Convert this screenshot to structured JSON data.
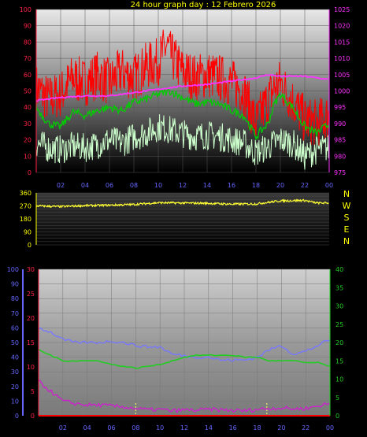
{
  "title": "24 hour graph day : 12 Febrero 2026",
  "colors": {
    "wind_gust": "#ff0000",
    "wind_speed": "#00cc00",
    "wind_speed_low": "#ccffcc",
    "pressure": "#ff33ff",
    "direction": "#ffff33",
    "left_axis_a": "#6666ff",
    "left_axis_b": "#ff2244",
    "right_axis_c": "#22cc22",
    "tick_yellow": "#ffff00",
    "tick_magenta": "#ff33ff"
  },
  "chart_data": [
    {
      "type": "line",
      "name": "wind-pressure",
      "x_tick_labels": [
        "02",
        "04",
        "06",
        "08",
        "10",
        "12",
        "14",
        "16",
        "18",
        "20",
        "22",
        "00"
      ],
      "y_left_ticks": [
        "0",
        "10",
        "20",
        "30",
        "40",
        "50",
        "60",
        "70",
        "80",
        "90",
        "100"
      ],
      "y_left_range": [
        0,
        100
      ],
      "y_right_ticks": [
        "975",
        "980",
        "985",
        "990",
        "995",
        "1000",
        "1005",
        "1010",
        "1015",
        "1020",
        "1025"
      ],
      "y_right_range": [
        975,
        1025
      ],
      "x_range_hours": [
        0,
        24
      ],
      "series": [
        {
          "key": "gust",
          "axis": "left",
          "x": [
            0,
            1,
            2,
            3,
            4,
            5,
            6,
            7,
            8,
            9,
            10,
            10.7,
            11,
            12,
            13,
            14,
            15,
            16,
            17,
            18,
            19,
            19.5,
            20,
            21,
            22,
            23,
            24
          ],
          "values": [
            52,
            45,
            48,
            58,
            55,
            60,
            55,
            62,
            58,
            65,
            68,
            78,
            72,
            62,
            58,
            60,
            58,
            55,
            50,
            30,
            45,
            52,
            55,
            44,
            32,
            30,
            35
          ]
        },
        {
          "key": "speed",
          "axis": "left",
          "x": [
            0,
            1,
            2,
            3,
            4,
            5,
            6,
            7,
            8,
            9,
            10,
            11,
            12,
            13,
            14,
            15,
            16,
            17,
            18,
            19,
            19.5,
            20,
            21,
            22,
            23,
            24
          ],
          "values": [
            40,
            30,
            28,
            37,
            35,
            38,
            40,
            38,
            43,
            45,
            48,
            50,
            46,
            42,
            43,
            42,
            38,
            35,
            22,
            30,
            42,
            48,
            40,
            28,
            24,
            30
          ]
        },
        {
          "key": "speed_low",
          "axis": "left",
          "x": [
            0,
            1,
            2,
            3,
            4,
            5,
            6,
            7,
            8,
            9,
            10,
            11,
            12,
            13,
            14,
            15,
            16,
            17,
            18,
            19,
            20,
            21,
            22,
            23,
            24
          ],
          "values": [
            18,
            15,
            14,
            16,
            15,
            17,
            20,
            18,
            22,
            24,
            28,
            26,
            24,
            22,
            23,
            22,
            20,
            18,
            12,
            16,
            20,
            18,
            10,
            14,
            15
          ]
        },
        {
          "key": "pressure",
          "axis": "right",
          "x": [
            0,
            2,
            4,
            6,
            8,
            10,
            12,
            14,
            16,
            18,
            19,
            20,
            22,
            24
          ],
          "values": [
            997,
            998,
            998.5,
            998.5,
            999.5,
            1000.5,
            1001.5,
            1002,
            1003,
            1004,
            1005,
            1004.5,
            1004.5,
            1003.5
          ]
        }
      ]
    },
    {
      "type": "line",
      "name": "wind-direction",
      "x_tick_labels": [],
      "y_ticks": [
        "0",
        "90",
        "180",
        "270",
        "360"
      ],
      "y_range": [
        0,
        360
      ],
      "compass_labels": [
        "N",
        "W",
        "S",
        "E",
        "N"
      ],
      "series": [
        {
          "key": "direction",
          "x": [
            0,
            2,
            4,
            6,
            8,
            10,
            12,
            14,
            16,
            18,
            20,
            22,
            23,
            24
          ],
          "values": [
            270,
            265,
            272,
            275,
            280,
            292,
            290,
            288,
            282,
            284,
            305,
            308,
            290,
            290
          ]
        }
      ]
    },
    {
      "type": "line",
      "name": "climate",
      "x_tick_labels": [
        "02",
        "04",
        "06",
        "08",
        "10",
        "12",
        "14",
        "16",
        "18",
        "20",
        "22",
        "00"
      ],
      "y_left_a_ticks": [
        "0",
        "10",
        "20",
        "30",
        "40",
        "50",
        "60",
        "70",
        "80",
        "90",
        "100"
      ],
      "y_left_a_range": [
        0,
        100
      ],
      "y_left_b_ticks": [
        "0",
        "5",
        "10",
        "15",
        "20",
        "25",
        "30"
      ],
      "y_left_b_range": [
        0,
        30
      ],
      "y_right_ticks": [
        "0",
        "5",
        "10",
        "15",
        "20",
        "25",
        "30",
        "35",
        "40"
      ],
      "y_right_range": [
        0,
        40
      ],
      "series": [
        {
          "key": "humidity",
          "axis": "left_a",
          "x": [
            0,
            1,
            2,
            3,
            4,
            5,
            6,
            7,
            8,
            9,
            10,
            11,
            12,
            13,
            14,
            15,
            16,
            17,
            18,
            19,
            20,
            21,
            22,
            23,
            24
          ],
          "values": [
            60,
            57,
            52,
            50,
            50,
            50,
            51,
            50,
            48,
            47,
            47,
            42,
            41,
            40,
            40,
            38,
            38,
            38,
            40,
            45,
            48,
            42,
            44,
            48,
            52
          ]
        },
        {
          "key": "temperature",
          "axis": "right",
          "x": [
            0,
            1,
            2,
            3,
            4,
            5,
            6,
            7,
            8,
            9,
            10,
            11,
            12,
            13,
            14,
            15,
            16,
            17,
            18,
            19,
            20,
            21,
            22,
            23,
            24
          ],
          "values": [
            18,
            16.5,
            15,
            15,
            15,
            15,
            14,
            13.5,
            13,
            13.5,
            14,
            15,
            16,
            16.5,
            16.5,
            16.5,
            16.5,
            16,
            16,
            15,
            15,
            15,
            14.5,
            14.5,
            13.5
          ]
        },
        {
          "key": "dewpoint",
          "axis": "left_b",
          "x": [
            0,
            1,
            2,
            3,
            4,
            5,
            6,
            7,
            8,
            9,
            10,
            11,
            12,
            13,
            14,
            15,
            16,
            17,
            18,
            19,
            20,
            21,
            22,
            23,
            24
          ],
          "values": [
            7,
            5,
            3,
            2.5,
            2.2,
            2.2,
            2,
            1.8,
            1.5,
            1.2,
            1.3,
            1,
            1.2,
            1.1,
            1.3,
            1.2,
            1.1,
            1,
            1.3,
            1.5,
            1.6,
            1.4,
            1.5,
            2,
            2.5
          ]
        },
        {
          "key": "rain",
          "axis": "left_b",
          "x": [
            0,
            24
          ],
          "values": [
            0,
            0
          ]
        }
      ]
    }
  ]
}
